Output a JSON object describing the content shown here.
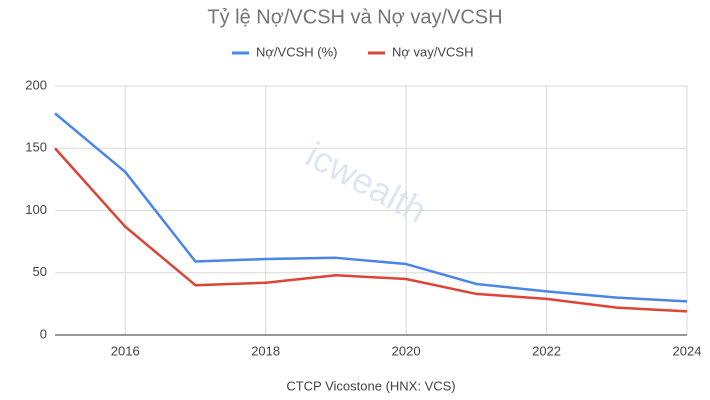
{
  "chart_data": {
    "type": "line",
    "title": "Tỷ lệ Nợ/VCSH và Nợ vay/VCSH",
    "x_label": "CTCP Vicostone (HNX: VCS)",
    "watermark": "icwealth",
    "x": [
      2015,
      2016,
      2017,
      2018,
      2019,
      2020,
      2021,
      2022,
      2023,
      2024
    ],
    "series": [
      {
        "name": "Nợ/VCSH (%)",
        "color": "#4a86e8",
        "values": [
          178,
          131,
          59,
          61,
          62,
          57,
          41,
          35,
          30,
          27
        ]
      },
      {
        "name": "Nợ vay/VCSH",
        "color": "#db4437",
        "values": [
          150,
          87,
          40,
          42,
          48,
          45,
          33,
          29,
          22,
          19
        ]
      }
    ],
    "xlim": [
      2015,
      2024
    ],
    "xticks": [
      2016,
      2018,
      2020,
      2022,
      2024
    ],
    "ylim": [
      0,
      200
    ],
    "yticks": [
      0,
      50,
      100,
      150,
      200
    ],
    "grid": true,
    "legend": "top"
  }
}
